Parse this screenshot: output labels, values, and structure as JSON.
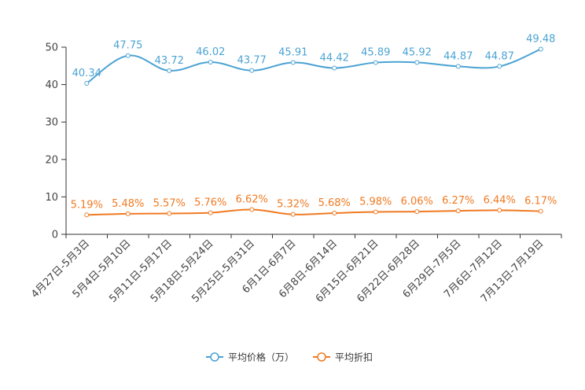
{
  "chart_data": {
    "type": "line",
    "title": "",
    "xlabel": "",
    "ylabel": "",
    "ylim": [
      0,
      50
    ],
    "yticks": [
      0,
      10,
      20,
      30,
      40,
      50
    ],
    "grid": false,
    "legend_position": "bottom-center",
    "categories": [
      "4月27日-5月3日",
      "5月4日-5月10日",
      "5月11日-5月17日",
      "5月18日-5月24日",
      "5月25日-5月31日",
      "6月1日-6月7日",
      "6月8日-6月14日",
      "6月15日-6月21日",
      "6月22日-6月28日",
      "6月29日-7月5日",
      "7月6日-7月12日",
      "7月13日-7月19日"
    ],
    "series": [
      {
        "name": "平均价格（万）",
        "color": "#4ba3d3",
        "values": [
          40.34,
          47.75,
          43.72,
          46.02,
          43.77,
          45.91,
          44.42,
          45.89,
          45.92,
          44.87,
          44.87,
          49.48
        ],
        "labels": [
          "40.34",
          "47.75",
          "43.72",
          "46.02",
          "43.77",
          "45.91",
          "44.42",
          "45.89",
          "45.92",
          "44.87",
          "44.87",
          "49.48"
        ]
      },
      {
        "name": "平均折扣",
        "color": "#f07a22",
        "values": [
          5.19,
          5.48,
          5.57,
          5.76,
          6.62,
          5.32,
          5.68,
          5.98,
          6.06,
          6.27,
          6.44,
          6.17
        ],
        "labels": [
          "5.19%",
          "5.48%",
          "5.57%",
          "5.76%",
          "6.62%",
          "5.32%",
          "5.68%",
          "5.98%",
          "6.06%",
          "6.27%",
          "6.44%",
          "6.17%"
        ]
      }
    ]
  }
}
